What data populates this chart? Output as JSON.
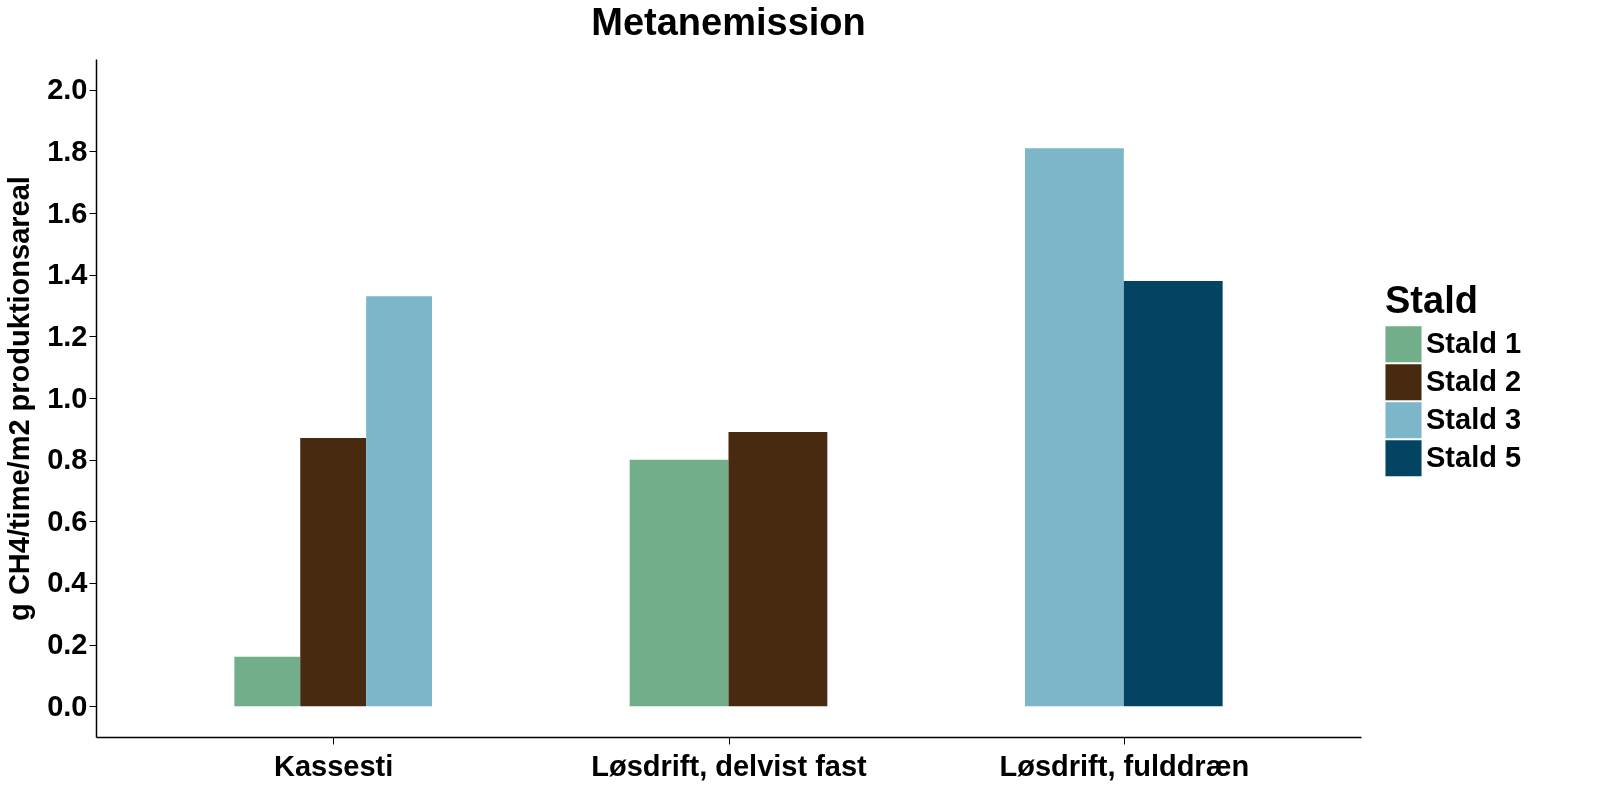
{
  "chart_data": {
    "type": "bar",
    "title": "Metanemission",
    "ylabel": "g CH4/time/m2 produktionsareal",
    "legend_title": "Stald",
    "categories": [
      "Kassesti",
      "Løsdrift, delvist fast",
      "Løsdrift, fulddræn"
    ],
    "series": [
      {
        "name": "Stald 1",
        "color": "#72ae8a",
        "values": [
          0.16,
          0.8,
          null
        ]
      },
      {
        "name": "Stald 2",
        "color": "#472a10",
        "values": [
          0.87,
          0.89,
          null
        ]
      },
      {
        "name": "Stald 3",
        "color": "#7db6c8",
        "values": [
          1.33,
          null,
          1.81
        ]
      },
      {
        "name": "Stald 5",
        "color": "#024462",
        "values": [
          null,
          null,
          1.38
        ]
      }
    ],
    "ylim": [
      -0.1,
      2.1
    ],
    "yticks": [
      {
        "value": 0,
        "label": "0.0"
      },
      0.2,
      0.4,
      0.6,
      0.8,
      {
        "value": 1,
        "label": "1.0"
      },
      1.2,
      1.4,
      1.6,
      1.8,
      {
        "value": 2,
        "label": "2.0"
      }
    ],
    "grid": false,
    "legend": "right"
  }
}
